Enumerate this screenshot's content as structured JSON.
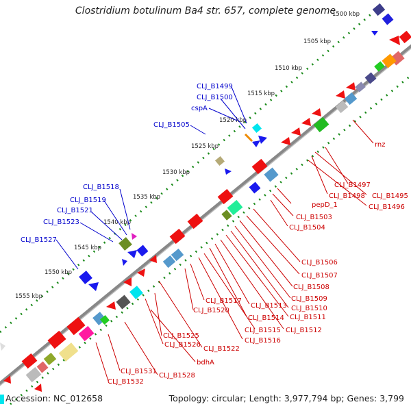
{
  "title": "Clostridium botulinum Ba4 str. 657, complete genome",
  "accession": "Accession: NC_012658",
  "summary": "Topology: circular; Length: 3,977,794 bp; Genes: 3,799",
  "colors": {
    "backbone": "#8c8c8c",
    "tick": "#1a7a1a",
    "forward_label": "#0000cc",
    "reverse_label": "#cc0000"
  },
  "ticks": [
    "1500 kbp",
    "1505 kbp",
    "1510 kbp",
    "1515 kbp",
    "1520 kbp",
    "1525 kbp",
    "1530 kbp",
    "1535 kbp",
    "1540 kbp",
    "1545 kbp",
    "1550 kbp",
    "1555 kbp"
  ],
  "forward_labels": [
    "CLJ_B1499",
    "CLJ_B1500",
    "cspA",
    "CLJ_B1505",
    "CLJ_B1518",
    "CLJ_B1519",
    "CLJ_B1521",
    "CLJ_B1523",
    "CLJ_B1527"
  ],
  "reverse_labels": [
    "rnz",
    "CLJ_B1497",
    "CLJ_B1495",
    "CLJ_B1498",
    "CLJ_B1496",
    "pepD_1",
    "CLJ_B1503",
    "CLJ_B1504",
    "CLJ_B1506",
    "CLJ_B1507",
    "CLJ_B1508",
    "CLJ_B1509",
    "CLJ_B1510",
    "CLJ_B1511",
    "CLJ_B1512",
    "CLJ_B1513",
    "CLJ_B1514",
    "CLJ_B1515",
    "CLJ_B1516",
    "CLJ_B1517",
    "CLJ_B1520",
    "CLJ_B1522",
    "CLJ_B1525",
    "CLJ_B1526",
    "bdhA",
    "CLJ_B1528",
    "CLJ_B1531",
    "CLJ_B1532"
  ]
}
